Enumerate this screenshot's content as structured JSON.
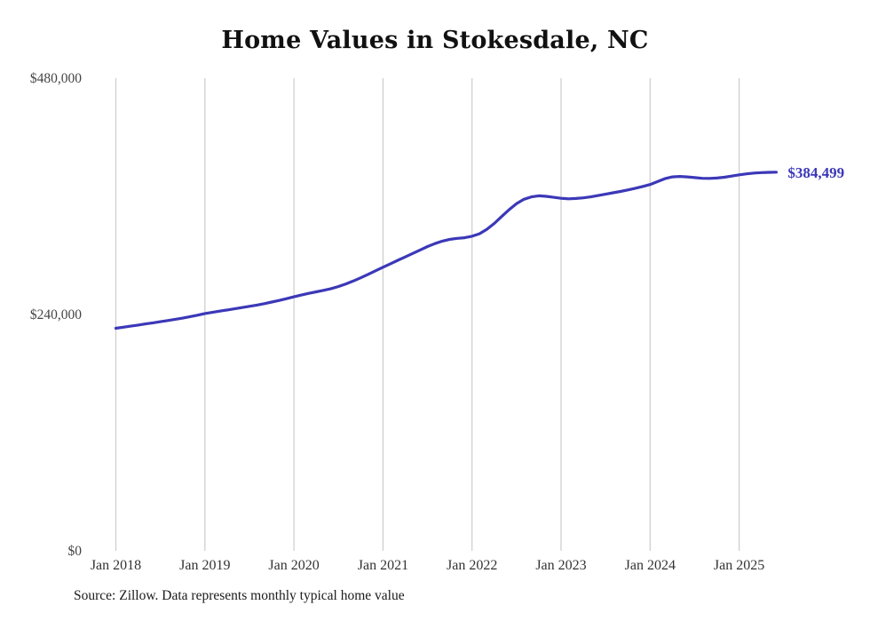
{
  "title": "Home Values in Stokesdale, NC",
  "source_note": "Source: Zillow. Data represents monthly typical home value",
  "colors": {
    "line": "#3b38b8",
    "grid": "#cccccc",
    "axis_text": "#333333",
    "title_text": "#111111"
  },
  "chart_data": {
    "type": "line",
    "title": "Home Values in Stokesdale, NC",
    "xlabel": "",
    "ylabel": "",
    "grid": "vertical-only",
    "legend": "none",
    "ylim": [
      0,
      480000
    ],
    "x_monthly_start": "2018-01",
    "x_monthly_end": "2025-06",
    "yticks": [
      {
        "value": 0,
        "label": "$0"
      },
      {
        "value": 240000,
        "label": "$240,000"
      },
      {
        "value": 480000,
        "label": "$480,000"
      }
    ],
    "xticks": [
      {
        "year": 2018,
        "label": "Jan 2018"
      },
      {
        "year": 2019,
        "label": "Jan 2019"
      },
      {
        "year": 2020,
        "label": "Jan 2020"
      },
      {
        "year": 2021,
        "label": "Jan 2021"
      },
      {
        "year": 2022,
        "label": "Jan 2022"
      },
      {
        "year": 2023,
        "label": "Jan 2023"
      },
      {
        "year": 2024,
        "label": "Jan 2024"
      },
      {
        "year": 2025,
        "label": "Jan 2025"
      }
    ],
    "series": [
      {
        "name": "Monthly typical home value",
        "color": "#3b38b8",
        "monthly_values": [
          226000,
          227100,
          228200,
          229300,
          230400,
          231500,
          232700,
          233900,
          235100,
          236300,
          237800,
          239300,
          241000,
          242200,
          243400,
          244600,
          245800,
          247000,
          248300,
          249600,
          251000,
          252600,
          254300,
          256100,
          258000,
          259800,
          261500,
          263000,
          264500,
          266300,
          268400,
          271000,
          274000,
          277300,
          280800,
          284400,
          288000,
          291500,
          295000,
          298500,
          302000,
          305500,
          309000,
          312000,
          314500,
          316300,
          317300,
          318000,
          319500,
          322000,
          326500,
          332500,
          339500,
          346500,
          352500,
          357000,
          359500,
          360500,
          360000,
          359000,
          358000,
          357500,
          357800,
          358500,
          359500,
          360800,
          362200,
          363600,
          365000,
          366500,
          368200,
          370000,
          372000,
          375000,
          378000,
          379800,
          380200,
          379800,
          379000,
          378300,
          378200,
          378600,
          379400,
          380600,
          381800,
          382800,
          383600,
          384100,
          384350,
          384499
        ]
      }
    ],
    "final_value": 384499,
    "final_value_label": "$384,499"
  }
}
